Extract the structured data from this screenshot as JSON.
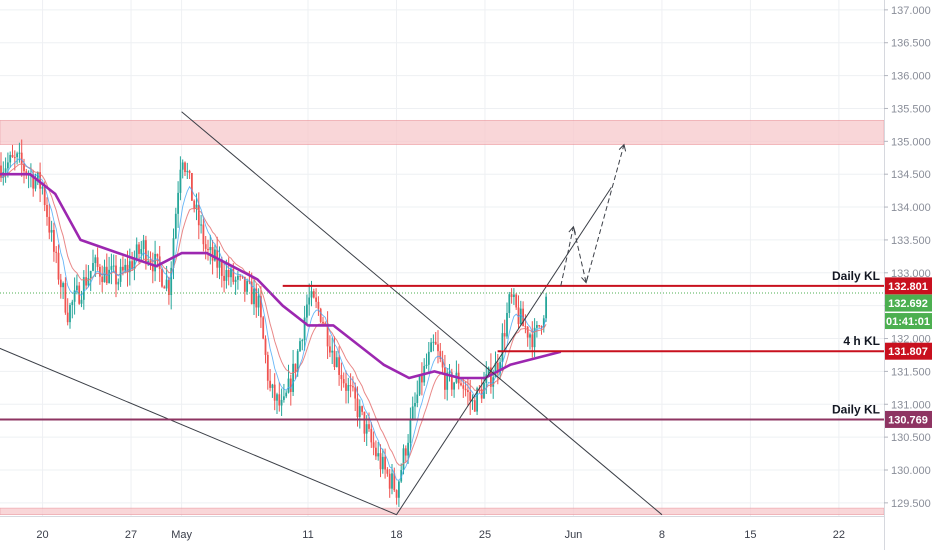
{
  "chart_data": {
    "type": "candlestick",
    "instrument_note": "",
    "y_range": [
      129.3,
      137.15
    ],
    "y_ticks": [
      "137.000",
      "136.500",
      "136.000",
      "135.500",
      "135.000",
      "134.500",
      "134.000",
      "133.500",
      "133.000",
      "132.500",
      "132.000",
      "131.500",
      "131.000",
      "130.500",
      "130.000",
      "129.500"
    ],
    "x_range": [
      "2020-04-16",
      "2020-06-24"
    ],
    "x_ticks": [
      {
        "date": "2020-04-20",
        "label": "20"
      },
      {
        "date": "2020-04-27",
        "label": "27"
      },
      {
        "date": "2020-05-01",
        "label": "May"
      },
      {
        "date": "2020-05-11",
        "label": "11"
      },
      {
        "date": "2020-05-18",
        "label": "18"
      },
      {
        "date": "2020-05-25",
        "label": "25"
      },
      {
        "date": "2020-06-01",
        "label": "Jun"
      },
      {
        "date": "2020-06-08",
        "label": "8"
      },
      {
        "date": "2020-06-15",
        "label": "15"
      },
      {
        "date": "2020-06-22",
        "label": "22"
      }
    ],
    "price_path": [
      [
        "2020-04-16",
        134.6
      ],
      [
        "2020-04-18",
        134.7
      ],
      [
        "2020-04-20",
        134.3
      ],
      [
        "2020-04-21",
        133.2
      ],
      [
        "2020-04-22",
        132.4
      ],
      [
        "2020-04-24",
        133.1
      ],
      [
        "2020-04-26",
        132.9
      ],
      [
        "2020-04-28",
        133.4
      ],
      [
        "2020-04-30",
        132.8
      ],
      [
        "2020-05-01",
        134.9
      ],
      [
        "2020-05-02",
        134.0
      ],
      [
        "2020-05-03",
        133.3
      ],
      [
        "2020-05-05",
        132.9
      ],
      [
        "2020-05-07",
        132.6
      ],
      [
        "2020-05-08",
        131.2
      ],
      [
        "2020-05-09",
        130.9
      ],
      [
        "2020-05-10",
        131.6
      ],
      [
        "2020-05-11",
        132.6
      ],
      [
        "2020-05-12",
        132.4
      ],
      [
        "2020-05-13",
        131.8
      ],
      [
        "2020-05-14",
        131.3
      ],
      [
        "2020-05-15",
        130.9
      ],
      [
        "2020-05-16",
        130.4
      ],
      [
        "2020-05-17",
        130.0
      ],
      [
        "2020-05-18",
        129.7
      ],
      [
        "2020-05-19",
        130.6
      ],
      [
        "2020-05-20",
        131.4
      ],
      [
        "2020-05-21",
        131.9
      ],
      [
        "2020-05-22",
        131.3
      ],
      [
        "2020-05-23",
        131.4
      ],
      [
        "2020-05-24",
        131.0
      ],
      [
        "2020-05-25",
        131.3
      ],
      [
        "2020-05-26",
        131.6
      ],
      [
        "2020-05-27",
        132.6
      ],
      [
        "2020-05-28",
        132.2
      ],
      [
        "2020-05-29",
        132.0
      ],
      [
        "2020-05-30",
        132.69
      ]
    ],
    "ma_purple": [
      [
        "2020-04-16",
        134.5
      ],
      [
        "2020-04-19",
        134.5
      ],
      [
        "2020-04-21",
        134.2
      ],
      [
        "2020-04-23",
        133.5
      ],
      [
        "2020-04-26",
        133.3
      ],
      [
        "2020-04-29",
        133.1
      ],
      [
        "2020-05-01",
        133.3
      ],
      [
        "2020-05-03",
        133.3
      ],
      [
        "2020-05-05",
        133.1
      ],
      [
        "2020-05-07",
        132.9
      ],
      [
        "2020-05-09",
        132.5
      ],
      [
        "2020-05-11",
        132.2
      ],
      [
        "2020-05-13",
        132.2
      ],
      [
        "2020-05-15",
        131.9
      ],
      [
        "2020-05-17",
        131.6
      ],
      [
        "2020-05-19",
        131.4
      ],
      [
        "2020-05-21",
        131.5
      ],
      [
        "2020-05-23",
        131.4
      ],
      [
        "2020-05-25",
        131.4
      ],
      [
        "2020-05-27",
        131.6
      ],
      [
        "2020-05-29",
        131.7
      ],
      [
        "2020-05-31",
        131.8
      ]
    ],
    "zones": [
      {
        "from": 134.95,
        "to": 135.32,
        "color": "#f8c9cc"
      },
      {
        "from": 129.32,
        "to": 129.42,
        "color": "#f8c9cc"
      }
    ],
    "levels": [
      {
        "price": 132.801,
        "label": "Daily KL",
        "tag": "132.801",
        "color": "#c8101e",
        "from": "2020-05-09"
      },
      {
        "price": 131.807,
        "label": "4 h KL",
        "tag": "131.807",
        "color": "#c8101e",
        "from": "2020-05-26"
      },
      {
        "price": 130.769,
        "label": "Daily KL",
        "tag": "130.769",
        "color": "#8e3462",
        "from": "2020-04-16"
      }
    ],
    "current_price": {
      "value": "132.692",
      "countdown": "01:41:01",
      "color": "#4caf50"
    },
    "trendlines": [
      {
        "from": [
          "2020-05-01",
          135.45
        ],
        "to": [
          "2020-06-08",
          129.32
        ]
      },
      {
        "from": [
          "2020-04-16",
          131.9
        ],
        "to": [
          "2020-05-18",
          129.32
        ]
      },
      {
        "from": [
          "2020-05-18",
          129.32
        ],
        "to": [
          "2020-06-04",
          134.3
        ]
      }
    ],
    "projection": [
      [
        "2020-05-31",
        132.8
      ],
      [
        "2020-06-01",
        133.7
      ],
      [
        "2020-06-02",
        132.85
      ],
      [
        "2020-06-05",
        134.95
      ]
    ],
    "colors": {
      "bull": "#26a69a",
      "bear": "#ef5350",
      "ma_purple": "#9c27b0",
      "ma_red": "#e57373",
      "ma_blue": "#42a5f5"
    }
  }
}
